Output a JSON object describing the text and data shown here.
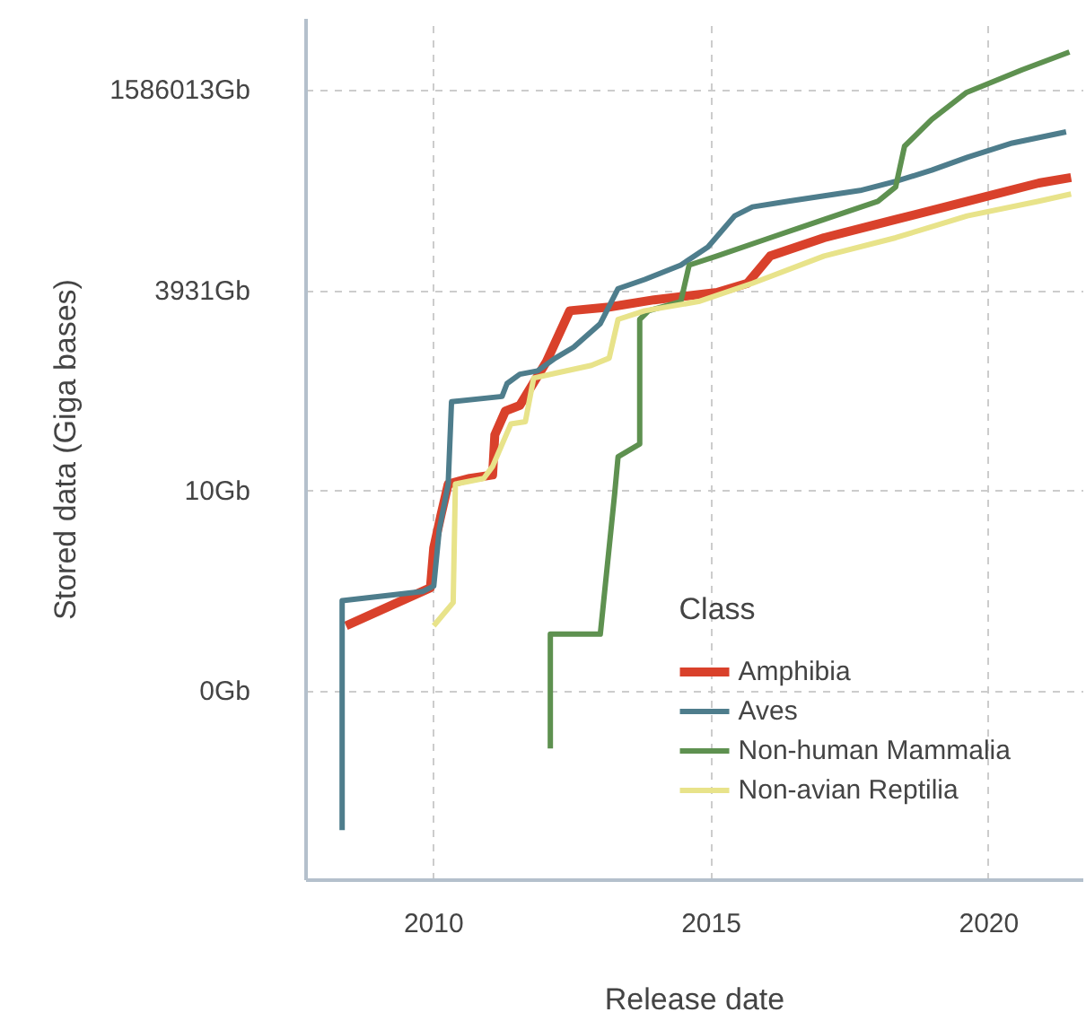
{
  "chart_data": {
    "type": "line",
    "xlabel": "Release date",
    "ylabel": "Stored data (Giga bases)",
    "legend_title": "Class",
    "legend": "bottom right",
    "log": "y",
    "grid": true,
    "line_style": "solid",
    "xlim": [
      2007.7,
      2021.7
    ],
    "xticks": [
      2010,
      2015,
      2020
    ],
    "ylim": [
      9e-05,
      13500000
    ],
    "yticks": [
      {
        "value": 0.025,
        "label": "0Gb"
      },
      {
        "value": 10,
        "label": "10Gb"
      },
      {
        "value": 3931,
        "label": "3931Gb"
      },
      {
        "value": 1586013,
        "label": "1586013Gb"
      }
    ],
    "series": [
      {
        "name": "Amphibia",
        "color": "#d9412b",
        "x": [
          2008.42,
          2009.94,
          2010.0,
          2010.13,
          2010.26,
          2010.65,
          2011.06,
          2011.1,
          2011.29,
          2011.55,
          2012.03,
          2012.45,
          2013.16,
          2013.97,
          2015.1,
          2015.65,
          2016.06,
          2017.03,
          2018.32,
          2019.61,
          2020.9,
          2021.48
        ],
        "values": [
          0.18,
          0.56,
          1.85,
          4.9,
          12.4,
          14.7,
          16.3,
          54,
          110,
          130,
          480,
          2200,
          2460,
          3050,
          3800,
          5000,
          11300,
          19500,
          33600,
          58000,
          100000,
          118000
        ]
      },
      {
        "name": "Aves",
        "color": "#4e7d8c",
        "x": [
          2008.35,
          2008.35,
          2009.8,
          2010.0,
          2010.1,
          2010.26,
          2010.32,
          2011.23,
          2011.32,
          2011.55,
          2011.87,
          2012.19,
          2012.52,
          2013.0,
          2013.32,
          2013.8,
          2014.45,
          2014.94,
          2015.42,
          2015.74,
          2016.39,
          2017.68,
          2018.32,
          2018.97,
          2019.61,
          2020.42,
          2021.39
        ],
        "values": [
          0.0004,
          0.38,
          0.5,
          0.59,
          3.2,
          12.4,
          145,
          170,
          250,
          330,
          365,
          535,
          740,
          1500,
          4260,
          5600,
          8600,
          14800,
          37500,
          49000,
          58000,
          80000,
          105000,
          147000,
          215000,
          330000,
          460000
        ]
      },
      {
        "name": "Non-human Mammalia",
        "color": "#5e9150",
        "x": [
          2012.1,
          2012.1,
          2013.0,
          2013.26,
          2013.32,
          2013.71,
          2013.71,
          2013.87,
          2014.45,
          2014.6,
          2015.1,
          2016.06,
          2017.03,
          2018.0,
          2018.32,
          2018.48,
          2018.97,
          2019.6,
          2020.6,
          2021.45
        ],
        "values": [
          0.0046,
          0.14,
          0.14,
          9.5,
          28,
          41,
          1700,
          2200,
          2900,
          8600,
          11300,
          19500,
          33600,
          58000,
          89000,
          300000,
          670000,
          1500000,
          2950000,
          5000000
        ]
      },
      {
        "name": "Non-avian Reptilia",
        "color": "#e8e38a",
        "x": [
          2010.0,
          2010.35,
          2010.39,
          2010.9,
          2011.06,
          2011.39,
          2011.65,
          2011.8,
          2012.19,
          2012.84,
          2013.16,
          2013.32,
          2013.8,
          2014.77,
          2015.74,
          2017.03,
          2018.32,
          2019.61,
          2020.9,
          2021.48
        ],
        "values": [
          0.18,
          0.36,
          12.4,
          14.7,
          21,
          75,
          80,
          295,
          340,
          430,
          535,
          1700,
          2200,
          2900,
          5000,
          11300,
          19500,
          37500,
          58000,
          72000
        ]
      }
    ]
  }
}
